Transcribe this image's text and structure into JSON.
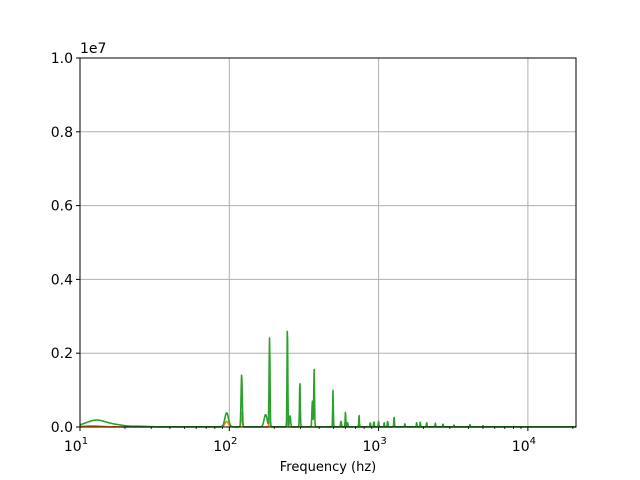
{
  "chart_data": {
    "type": "line",
    "title": "",
    "xlabel": "Frequency (hz)",
    "ylabel": "",
    "xscale": "log",
    "xlim": [
      10,
      21000
    ],
    "ylim": [
      0,
      10000000
    ],
    "y_offset_text": "1e7",
    "grid": true,
    "x_ticks": [
      {
        "value": 10,
        "base": "10",
        "exp": "1"
      },
      {
        "value": 100,
        "base": "10",
        "exp": "2"
      },
      {
        "value": 1000,
        "base": "10",
        "exp": "3"
      },
      {
        "value": 10000,
        "base": "10",
        "exp": "4"
      }
    ],
    "y_ticks": [
      {
        "value": 0,
        "label": "0.0"
      },
      {
        "value": 2000000,
        "label": "0.2"
      },
      {
        "value": 4000000,
        "label": "0.4"
      },
      {
        "value": 6000000,
        "label": "0.6"
      },
      {
        "value": 8000000,
        "label": "0.8"
      },
      {
        "value": 10000000,
        "label": "1.0"
      }
    ],
    "series": [
      {
        "color": "#2ca02c",
        "baseline": 5000,
        "peaks": [
          {
            "x": 11.5,
            "y": 80000,
            "w": 0.06
          },
          {
            "x": 13,
            "y": 100000,
            "w": 0.05
          },
          {
            "x": 15,
            "y": 60000,
            "w": 0.05
          },
          {
            "x": 18,
            "y": 40000,
            "w": 0.05
          },
          {
            "x": 25,
            "y": 15000,
            "w": 0.05
          },
          {
            "x": 96,
            "y": 380000,
            "w": 0.012
          },
          {
            "x": 121,
            "y": 1420000,
            "w": 0.004
          },
          {
            "x": 175,
            "y": 330000,
            "w": 0.01
          },
          {
            "x": 186,
            "y": 2400000,
            "w": 0.003
          },
          {
            "x": 245,
            "y": 2780000,
            "w": 0.0025
          },
          {
            "x": 255,
            "y": 300000,
            "w": 0.004
          },
          {
            "x": 297,
            "y": 1240000,
            "w": 0.0025
          },
          {
            "x": 360,
            "y": 700000,
            "w": 0.003
          },
          {
            "x": 370,
            "y": 1570000,
            "w": 0.0025
          },
          {
            "x": 495,
            "y": 1000000,
            "w": 0.002
          },
          {
            "x": 560,
            "y": 150000,
            "w": 0.003
          },
          {
            "x": 600,
            "y": 420000,
            "w": 0.002
          },
          {
            "x": 620,
            "y": 120000,
            "w": 0.002
          },
          {
            "x": 740,
            "y": 320000,
            "w": 0.002
          },
          {
            "x": 880,
            "y": 120000,
            "w": 0.002
          },
          {
            "x": 930,
            "y": 150000,
            "w": 0.002
          },
          {
            "x": 1000,
            "y": 150000,
            "w": 0.002
          },
          {
            "x": 1090,
            "y": 120000,
            "w": 0.002
          },
          {
            "x": 1150,
            "y": 160000,
            "w": 0.002
          },
          {
            "x": 1270,
            "y": 290000,
            "w": 0.002
          },
          {
            "x": 1500,
            "y": 80000,
            "w": 0.002
          },
          {
            "x": 1800,
            "y": 120000,
            "w": 0.002
          },
          {
            "x": 1900,
            "y": 130000,
            "w": 0.002
          },
          {
            "x": 2100,
            "y": 120000,
            "w": 0.002
          },
          {
            "x": 2400,
            "y": 100000,
            "w": 0.002
          },
          {
            "x": 2700,
            "y": 80000,
            "w": 0.002
          },
          {
            "x": 3200,
            "y": 50000,
            "w": 0.002
          },
          {
            "x": 4100,
            "y": 60000,
            "w": 0.002
          },
          {
            "x": 5000,
            "y": 30000,
            "w": 0.002
          }
        ]
      },
      {
        "color": "#ff7f0e",
        "baseline": 3000,
        "peaks": [
          {
            "x": 12,
            "y": 30000,
            "w": 0.06
          },
          {
            "x": 96,
            "y": 150000,
            "w": 0.012
          },
          {
            "x": 121,
            "y": 400000,
            "w": 0.004
          },
          {
            "x": 186,
            "y": 500000,
            "w": 0.003
          },
          {
            "x": 245,
            "y": 250000,
            "w": 0.0025
          }
        ]
      }
    ]
  }
}
